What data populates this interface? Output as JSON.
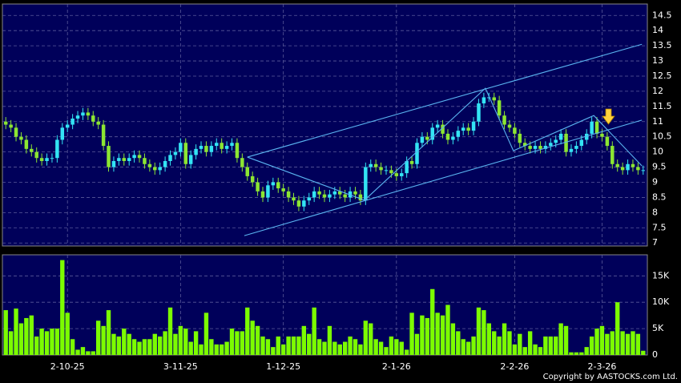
{
  "chart_data": {
    "type": "candlestick",
    "categories": [
      null,
      null,
      null,
      null,
      null,
      null,
      null,
      null,
      null,
      null,
      null,
      null,
      "2-10-25",
      null,
      null,
      null,
      null,
      null,
      null,
      null,
      null,
      null,
      null,
      null,
      null,
      null,
      null,
      null,
      null,
      null,
      null,
      null,
      null,
      null,
      "3-11-25",
      null,
      null,
      null,
      null,
      null,
      null,
      null,
      null,
      null,
      null,
      null,
      null,
      null,
      null,
      null,
      null,
      null,
      null,
      null,
      "1-12-25",
      null,
      null,
      null,
      null,
      null,
      null,
      null,
      null,
      null,
      null,
      null,
      null,
      null,
      null,
      null,
      null,
      null,
      null,
      null,
      null,
      null,
      "2-1-26",
      null,
      null,
      null,
      null,
      null,
      null,
      null,
      null,
      null,
      null,
      null,
      null,
      null,
      null,
      null,
      null,
      null,
      null,
      null,
      null,
      null,
      null,
      "2-2-26",
      null,
      null,
      null,
      null,
      null,
      null,
      null,
      null,
      null,
      null,
      null,
      null,
      null,
      null,
      null,
      null,
      "2-3-26",
      null,
      null,
      null,
      null,
      null,
      null,
      null,
      null
    ],
    "open": [
      11.0,
      10.9,
      10.8,
      10.5,
      10.4,
      10.1,
      10.0,
      9.8,
      9.7,
      9.8,
      9.8,
      10.4,
      10.8,
      10.9,
      11.1,
      11.2,
      11.3,
      11.2,
      11.0,
      10.9,
      10.2,
      9.5,
      9.7,
      9.8,
      9.7,
      9.8,
      9.9,
      9.8,
      9.6,
      9.5,
      9.4,
      9.5,
      9.7,
      9.9,
      10.0,
      10.3,
      9.6,
      9.9,
      10.1,
      10.2,
      10.0,
      10.2,
      10.3,
      10.1,
      10.2,
      10.3,
      9.8,
      9.5,
      9.2,
      9.0,
      8.7,
      8.5,
      8.9,
      9.0,
      8.8,
      8.7,
      8.5,
      8.4,
      8.2,
      8.4,
      8.5,
      8.7,
      8.6,
      8.5,
      8.6,
      8.7,
      8.6,
      8.5,
      8.7,
      8.6,
      8.4,
      9.5,
      9.6,
      9.5,
      9.4,
      9.4,
      9.3,
      9.2,
      9.3,
      9.7,
      9.6,
      10.3,
      10.5,
      10.4,
      10.8,
      10.9,
      10.6,
      10.4,
      10.5,
      10.7,
      10.8,
      10.7,
      11.0,
      11.6,
      11.8,
      11.8,
      11.7,
      11.2,
      10.9,
      10.8,
      10.6,
      10.3,
      10.2,
      10.1,
      10.2,
      10.1,
      10.2,
      10.3,
      10.4,
      10.6,
      10.0,
      10.1,
      10.2,
      10.4,
      10.6,
      11.0,
      10.6,
      10.5,
      10.2,
      9.6,
      9.5,
      9.4,
      9.6,
      9.5,
      9.4
    ],
    "high": [
      11.15,
      11.05,
      10.95,
      10.65,
      10.55,
      10.25,
      10.15,
      9.95,
      9.95,
      9.95,
      10.55,
      10.95,
      11.05,
      11.25,
      11.35,
      11.45,
      11.45,
      11.35,
      11.15,
      11.05,
      10.35,
      9.85,
      9.95,
      9.95,
      9.95,
      10.05,
      10.05,
      9.95,
      9.75,
      9.65,
      9.65,
      9.85,
      10.05,
      10.15,
      10.45,
      10.45,
      10.05,
      10.25,
      10.35,
      10.35,
      10.35,
      10.45,
      10.45,
      10.35,
      10.45,
      10.45,
      9.95,
      9.65,
      9.35,
      9.15,
      8.85,
      9.05,
      9.15,
      9.15,
      8.95,
      8.85,
      8.65,
      8.55,
      8.55,
      8.65,
      8.85,
      8.85,
      8.75,
      8.75,
      8.85,
      8.85,
      8.75,
      8.85,
      8.85,
      8.75,
      9.65,
      9.75,
      9.75,
      9.65,
      9.55,
      9.55,
      9.45,
      9.45,
      9.85,
      9.85,
      10.45,
      10.65,
      10.65,
      10.95,
      11.05,
      11.05,
      10.75,
      10.65,
      10.85,
      10.95,
      10.95,
      11.15,
      11.75,
      11.95,
      11.95,
      11.95,
      11.85,
      11.35,
      11.05,
      10.95,
      10.75,
      10.45,
      10.35,
      10.35,
      10.35,
      10.35,
      10.45,
      10.55,
      10.75,
      10.75,
      10.25,
      10.35,
      10.55,
      10.75,
      11.15,
      11.15,
      10.75,
      10.65,
      10.35,
      9.75,
      9.65,
      9.75,
      9.75,
      9.65,
      9.55
    ],
    "low": [
      10.75,
      10.65,
      10.35,
      10.25,
      9.95,
      9.85,
      9.65,
      9.55,
      9.55,
      9.65,
      9.65,
      10.25,
      10.65,
      10.75,
      10.95,
      11.05,
      11.05,
      10.85,
      10.75,
      10.05,
      9.35,
      9.35,
      9.55,
      9.55,
      9.55,
      9.65,
      9.65,
      9.45,
      9.35,
      9.25,
      9.25,
      9.35,
      9.55,
      9.75,
      9.85,
      9.45,
      9.45,
      9.75,
      9.95,
      9.85,
      9.85,
      10.05,
      9.95,
      9.95,
      10.05,
      9.65,
      9.35,
      9.05,
      8.85,
      8.55,
      8.35,
      8.35,
      8.75,
      8.65,
      8.55,
      8.35,
      8.25,
      8.05,
      8.05,
      8.25,
      8.35,
      8.45,
      8.35,
      8.35,
      8.45,
      8.45,
      8.35,
      8.35,
      8.45,
      8.25,
      8.25,
      9.35,
      9.35,
      9.25,
      9.25,
      9.15,
      9.05,
      9.05,
      9.15,
      9.45,
      9.45,
      10.15,
      10.25,
      10.25,
      10.65,
      10.45,
      10.25,
      10.25,
      10.35,
      10.55,
      10.55,
      10.55,
      10.85,
      11.45,
      11.65,
      11.55,
      11.05,
      10.75,
      10.65,
      10.45,
      10.15,
      10.05,
      9.95,
      9.95,
      9.95,
      9.95,
      10.05,
      10.15,
      10.25,
      9.85,
      9.85,
      9.95,
      10.05,
      10.25,
      10.45,
      10.45,
      10.35,
      10.05,
      9.45,
      9.35,
      9.25,
      9.25,
      9.35,
      9.25,
      9.25
    ],
    "close": [
      10.9,
      10.8,
      10.5,
      10.4,
      10.1,
      10.0,
      9.8,
      9.7,
      9.8,
      9.8,
      10.4,
      10.8,
      10.9,
      11.1,
      11.2,
      11.3,
      11.2,
      11.0,
      10.9,
      10.2,
      9.5,
      9.7,
      9.8,
      9.7,
      9.8,
      9.9,
      9.8,
      9.6,
      9.5,
      9.4,
      9.5,
      9.7,
      9.9,
      10.0,
      10.3,
      9.6,
      9.9,
      10.1,
      10.2,
      10.0,
      10.2,
      10.3,
      10.1,
      10.2,
      10.3,
      9.8,
      9.5,
      9.2,
      9.0,
      8.7,
      8.5,
      8.9,
      9.0,
      8.8,
      8.7,
      8.5,
      8.4,
      8.2,
      8.4,
      8.5,
      8.7,
      8.6,
      8.5,
      8.6,
      8.7,
      8.6,
      8.5,
      8.7,
      8.6,
      8.4,
      9.5,
      9.6,
      9.5,
      9.4,
      9.4,
      9.3,
      9.2,
      9.3,
      9.7,
      9.6,
      10.3,
      10.5,
      10.4,
      10.8,
      10.9,
      10.6,
      10.4,
      10.5,
      10.7,
      10.8,
      10.7,
      11.0,
      11.6,
      11.8,
      11.8,
      11.7,
      11.2,
      10.9,
      10.8,
      10.6,
      10.3,
      10.2,
      10.1,
      10.2,
      10.1,
      10.2,
      10.3,
      10.4,
      10.6,
      10.0,
      10.1,
      10.2,
      10.4,
      10.6,
      11.0,
      10.6,
      10.5,
      10.2,
      9.6,
      9.5,
      9.4,
      9.6,
      9.5,
      9.4,
      9.4
    ],
    "volume": [
      8500,
      4500,
      8800,
      6000,
      7000,
      7500,
      3500,
      5000,
      4500,
      5000,
      5000,
      18000,
      8000,
      3000,
      1000,
      1500,
      700,
      700,
      6500,
      5500,
      8500,
      4000,
      3500,
      5000,
      4000,
      3000,
      2500,
      3000,
      3000,
      4000,
      3500,
      4500,
      9000,
      4000,
      5500,
      5000,
      2500,
      4500,
      2000,
      8000,
      3000,
      2000,
      2000,
      2500,
      5000,
      4500,
      4500,
      9000,
      6500,
      5500,
      3500,
      3000,
      1500,
      3500,
      2000,
      3500,
      3500,
      3500,
      5500,
      4000,
      9000,
      3000,
      2500,
      5500,
      2500,
      2000,
      2500,
      3500,
      3000,
      2000,
      6500,
      6000,
      3000,
      2500,
      1500,
      3500,
      3000,
      2500,
      1000,
      8000,
      4000,
      7500,
      7000,
      12500,
      8000,
      7500,
      9500,
      6000,
      4500,
      3000,
      2500,
      3500,
      9000,
      8500,
      6000,
      4500,
      3500,
      6000,
      4500,
      2000,
      4000,
      1500,
      4500,
      2000,
      1500,
      3500,
      3500,
      3500,
      6000,
      5500,
      500,
      500,
      500,
      1500,
      3500,
      5000,
      5500,
      4000,
      4500,
      10000,
      4500,
      4000,
      4500,
      4000,
      800
    ],
    "up_color": "#33e4f4",
    "down_color": "#8ce632",
    "volume_color": "#7cfc00",
    "ylim": [
      6.9,
      14.85
    ],
    "yticks": [
      7,
      7.5,
      8,
      8.5,
      9,
      9.5,
      10,
      10.5,
      11,
      11.5,
      12,
      12.5,
      13,
      13.5,
      14,
      14.5
    ],
    "volume_ylim": [
      0,
      19000
    ],
    "volume_yticks": [
      {
        "value": 0,
        "label": "0"
      },
      {
        "value": 5000,
        "label": "5K"
      },
      {
        "value": 10000,
        "label": "10K"
      },
      {
        "value": 15000,
        "label": "15K"
      }
    ],
    "grid": true,
    "lines": [
      {
        "color": "#5ab4f0",
        "x": [
          47,
          123.75
        ],
        "y": [
          9.83,
          13.55
        ]
      },
      {
        "color": "#5ab4f0",
        "x": [
          46.4,
          123.75
        ],
        "y": [
          7.24,
          11.05
        ]
      },
      {
        "color": "#5ab4f0",
        "x": [
          47,
          69.8,
          93.3,
          98.75,
          114.4,
          123.75
        ],
        "y": [
          9.83,
          8.41,
          12.1,
          10.04,
          11.2,
          9.54
        ]
      }
    ],
    "copyright": "Copyright by AASTOCKS.com Ltd."
  }
}
